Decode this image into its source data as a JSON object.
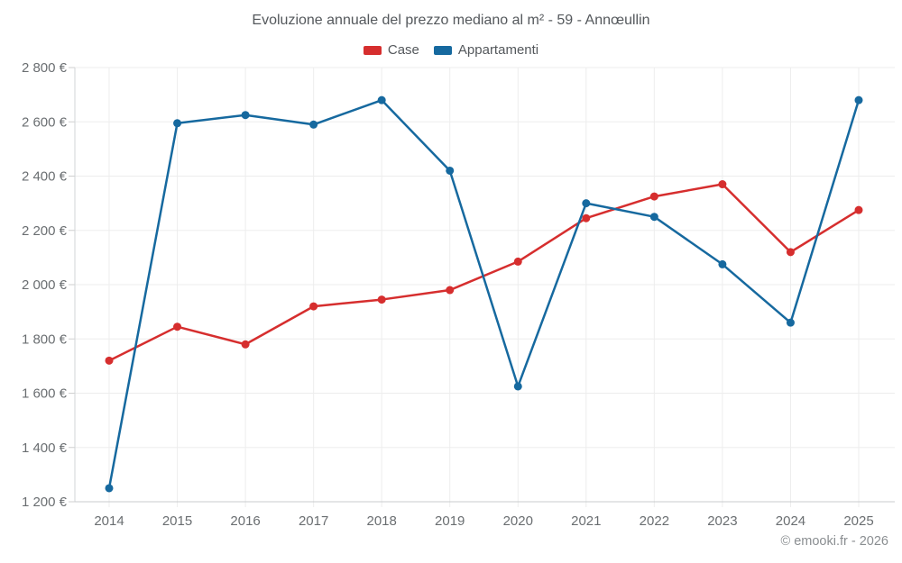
{
  "title": "Evoluzione annuale del prezzo mediano al m² - 59 - Annœullin",
  "copyright": "© emooki.fr - 2026",
  "chart_data": {
    "type": "line",
    "x": [
      "2014",
      "2015",
      "2016",
      "2017",
      "2018",
      "2019",
      "2020",
      "2021",
      "2022",
      "2023",
      "2024",
      "2025"
    ],
    "series": [
      {
        "name": "Case",
        "color": "#d62e2e",
        "values": [
          1720,
          1845,
          1780,
          1920,
          1945,
          1980,
          2085,
          2245,
          2325,
          2370,
          2120,
          2275
        ]
      },
      {
        "name": "Appartamenti",
        "color": "#16699f",
        "values": [
          1250,
          2595,
          2625,
          2590,
          2680,
          2420,
          1625,
          2300,
          2250,
          2075,
          1860,
          2680
        ]
      }
    ],
    "ylim": [
      1200,
      2800
    ],
    "ytick_step": 200,
    "ytick_suffix": " €",
    "xlabel": "",
    "ylabel": "",
    "grid": true,
    "legend_position": "top",
    "colors": {
      "grid_line": "#ededed",
      "axis_line": "#c8cbcd",
      "plot_border": "#d2d5d7",
      "tick_mark": "#cfcfcf",
      "tick_text": "#6a6e71",
      "title_text": "#54585c",
      "copyright_text": "#8a8e91"
    }
  }
}
